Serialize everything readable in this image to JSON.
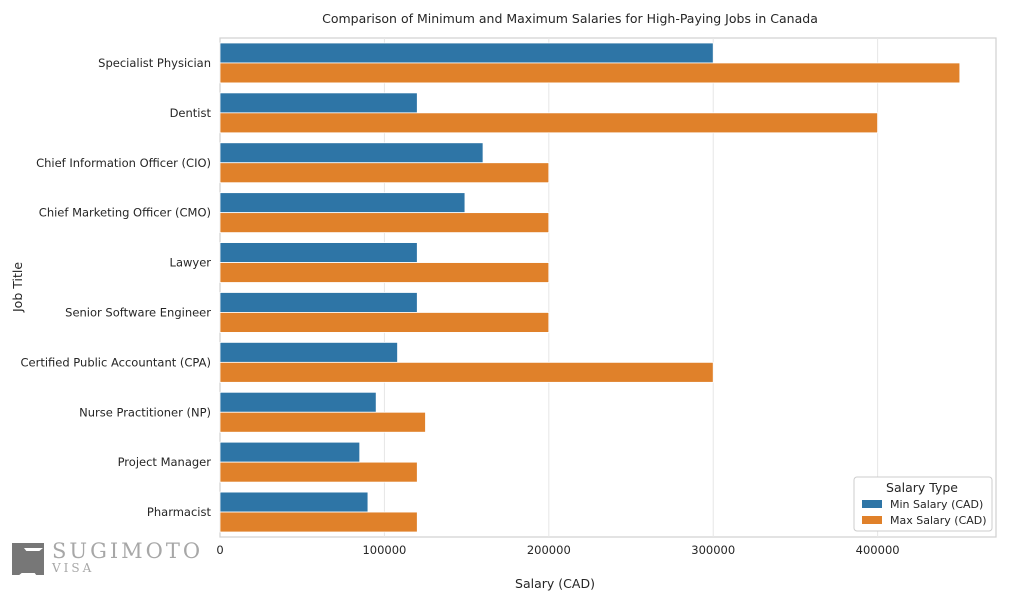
{
  "chart_data": {
    "type": "bar",
    "orientation": "horizontal",
    "title": "Comparison of Minimum and Maximum Salaries for High-Paying Jobs in Canada",
    "xlabel": "Salary (CAD)",
    "ylabel": "Job Title",
    "categories": [
      "Specialist Physician",
      "Dentist",
      "Chief Information Officer (CIO)",
      "Chief Marketing Officer (CMO)",
      "Lawyer",
      "Senior Software Engineer",
      "Certified Public Accountant (CPA)",
      "Nurse Practitioner (NP)",
      "Project Manager",
      "Pharmacist"
    ],
    "series": [
      {
        "name": "Min Salary (CAD)",
        "color": "#2e75a6",
        "values": [
          300000,
          120000,
          160000,
          149000,
          120000,
          120000,
          108000,
          95000,
          85000,
          90000
        ]
      },
      {
        "name": "Max Salary (CAD)",
        "color": "#e0812a",
        "values": [
          450000,
          400000,
          200000,
          200000,
          200000,
          200000,
          300000,
          125000,
          120000,
          120000
        ]
      }
    ],
    "xlim": [
      0,
      472000
    ],
    "xticks": [
      0,
      100000,
      200000,
      300000,
      400000
    ],
    "xtick_labels": [
      "0",
      "100000",
      "200000",
      "300000",
      "400000"
    ],
    "grid": true,
    "legend": {
      "title": "Salary Type",
      "position": "lower-right"
    }
  },
  "watermark": {
    "brand": "SUGIMOTO",
    "sub": "VISA"
  }
}
